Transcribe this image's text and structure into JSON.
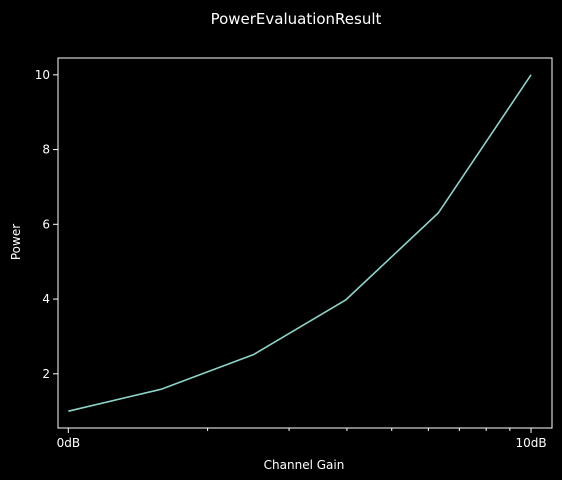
{
  "chart_data": {
    "type": "line",
    "title": "PowerEvaluationResult",
    "xlabel": "Channel Gain",
    "ylabel": "Power",
    "x_scale": "log",
    "xlim": [
      0.95,
      11.1
    ],
    "ylim": [
      0.55,
      10.45
    ],
    "x_ticks": [
      {
        "value": 1,
        "label": "0dB"
      },
      {
        "value": 10,
        "label": "10dB"
      }
    ],
    "x_minor_ticks": [
      2,
      3,
      4,
      5,
      6,
      7,
      8,
      9
    ],
    "y_ticks": [
      {
        "value": 2,
        "label": "2"
      },
      {
        "value": 4,
        "label": "4"
      },
      {
        "value": 6,
        "label": "6"
      },
      {
        "value": 8,
        "label": "8"
      },
      {
        "value": 10,
        "label": "10"
      }
    ],
    "grid": false,
    "series": [
      {
        "x": [
          1,
          1.585,
          2.512,
          3.981,
          6.31,
          10
        ],
        "y": [
          1,
          1.585,
          2.512,
          3.981,
          6.31,
          10
        ],
        "color": "#8dd3c7"
      }
    ],
    "colors": {
      "background": "#000000",
      "axes": "#ffffff",
      "text": "#ffffff",
      "line": "#8dd3c7"
    }
  }
}
